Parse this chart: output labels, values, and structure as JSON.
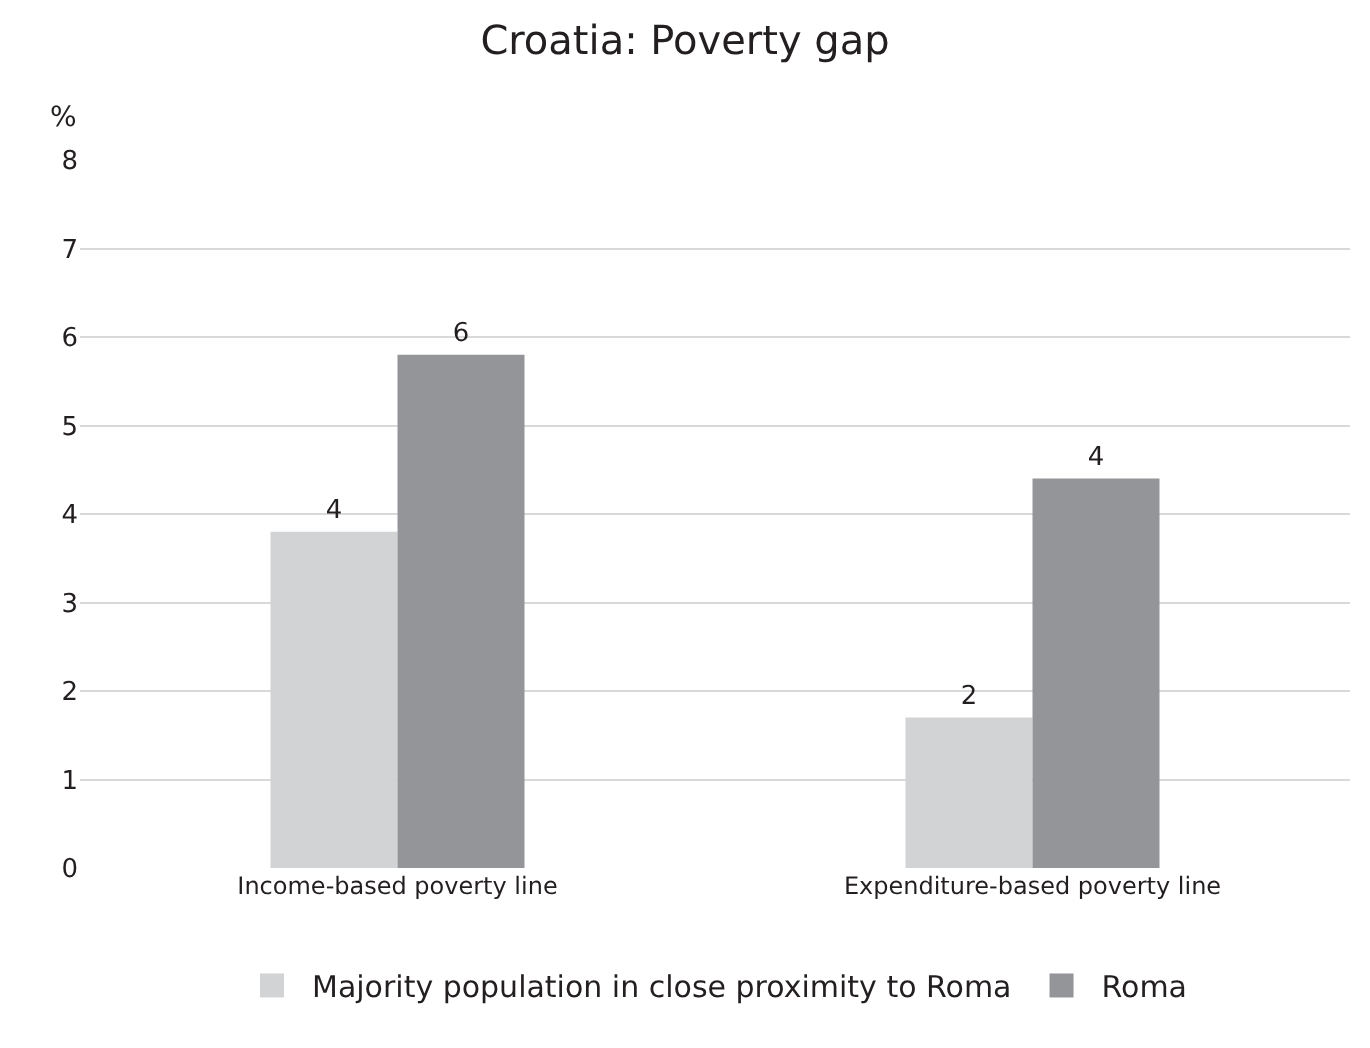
{
  "chart_data": {
    "type": "bar",
    "title": "Croatia: Poverty gap",
    "ylabel": "%",
    "categories": [
      "Income-based poverty line",
      "Expenditure-based poverty line"
    ],
    "series": [
      {
        "name": "Majority population in close proximity to Roma",
        "color": "#d2d3d5",
        "values": [
          3.8,
          1.7
        ],
        "value_labels": [
          "4",
          "2"
        ]
      },
      {
        "name": "Roma",
        "color": "#939598",
        "values": [
          5.8,
          4.4
        ],
        "value_labels": [
          "6",
          "4"
        ]
      }
    ],
    "ylim": [
      0,
      8
    ],
    "yticks": [
      0,
      1,
      2,
      3,
      4,
      5,
      6,
      7,
      8
    ],
    "grid": "y",
    "legend": "bottom"
  }
}
